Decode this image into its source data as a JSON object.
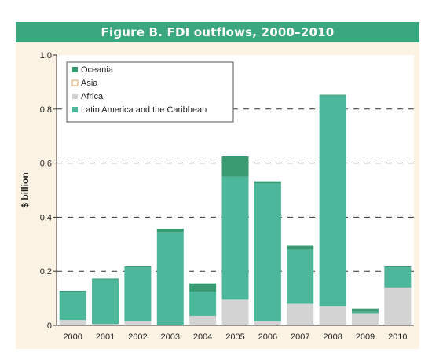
{
  "chart_data": {
    "type": "bar",
    "stacked": true,
    "title": "Figure B. FDI outflows, 2000–2010",
    "ylabel": "$ billion",
    "xlabel": "",
    "ylim": [
      0,
      1.0
    ],
    "yticks": [
      "0",
      "0.2",
      "0.4",
      "0.6",
      "0.8",
      "1.0"
    ],
    "grid": "dashed horizontal",
    "legend_position": "top-left",
    "categories": [
      "2000",
      "2001",
      "2002",
      "2003",
      "2004",
      "2005",
      "2006",
      "2007",
      "2008",
      "2009",
      "2010"
    ],
    "series": [
      {
        "name": "Africa",
        "color": "#d3d3d3",
        "values": [
          0.02,
          0.005,
          0.015,
          0.0,
          0.035,
          0.095,
          0.015,
          0.08,
          0.07,
          0.045,
          0.14
        ]
      },
      {
        "name": "Latin America and the Caribbean",
        "color": "#4cb79b",
        "values": [
          0.105,
          0.165,
          0.2,
          0.345,
          0.09,
          0.455,
          0.51,
          0.2,
          0.78,
          0.005,
          0.075
        ]
      },
      {
        "name": "Asia",
        "color": "#ffffff",
        "values": [
          0,
          0,
          0,
          0,
          0,
          0,
          0,
          0,
          0,
          0,
          0
        ]
      },
      {
        "name": "Oceania",
        "color": "#3a9a72",
        "values": [
          0.003,
          0.003,
          0.003,
          0.012,
          0.03,
          0.075,
          0.008,
          0.015,
          0.003,
          0.012,
          0.003
        ]
      }
    ],
    "legend_order": [
      "Oceania",
      "Asia",
      "Africa",
      "Latin America and the Caribbean"
    ]
  }
}
